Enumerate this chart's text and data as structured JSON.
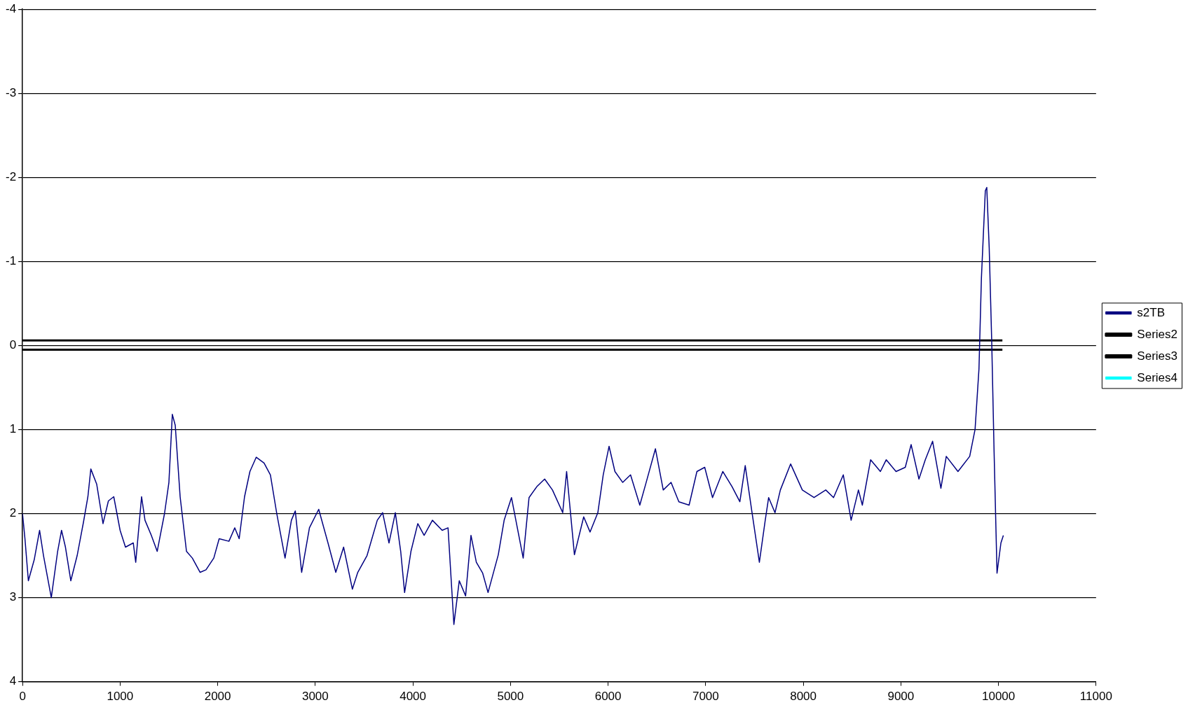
{
  "chart_data": {
    "type": "line",
    "xlim": [
      0,
      11000
    ],
    "xticks": [
      0,
      1000,
      2000,
      3000,
      4000,
      5000,
      6000,
      7000,
      8000,
      9000,
      10000,
      11000
    ],
    "ylim": [
      4,
      -4
    ],
    "yticks": [
      -4,
      -3,
      -2,
      -1,
      0,
      1,
      2,
      3,
      4
    ],
    "grid": "y",
    "legend": "right",
    "marker": "none",
    "series": [
      {
        "name": "s2TB",
        "color": "#000080",
        "x": [
          0,
          25,
          60,
          120,
          175,
          215,
          255,
          295,
          360,
          400,
          440,
          495,
          560,
          625,
          670,
          700,
          760,
          825,
          880,
          935,
          1000,
          1055,
          1135,
          1160,
          1220,
          1255,
          1320,
          1380,
          1455,
          1500,
          1535,
          1565,
          1615,
          1680,
          1740,
          1820,
          1880,
          1960,
          2015,
          2115,
          2175,
          2220,
          2275,
          2330,
          2395,
          2475,
          2540,
          2605,
          2690,
          2755,
          2795,
          2860,
          2940,
          3035,
          3130,
          3210,
          3290,
          3380,
          3435,
          3530,
          3635,
          3690,
          3755,
          3820,
          3875,
          3915,
          3980,
          4050,
          4115,
          4200,
          4300,
          4360,
          4420,
          4475,
          4540,
          4595,
          4650,
          4715,
          4770,
          4875,
          4935,
          5010,
          5070,
          5130,
          5190,
          5270,
          5350,
          5430,
          5535,
          5575,
          5655,
          5750,
          5815,
          5895,
          5950,
          6010,
          6070,
          6150,
          6230,
          6325,
          6390,
          6485,
          6565,
          6645,
          6725,
          6830,
          6910,
          6990,
          7070,
          7175,
          7270,
          7350,
          7405,
          7475,
          7550,
          7610,
          7645,
          7710,
          7765,
          7870,
          7990,
          8110,
          8230,
          8310,
          8410,
          8490,
          8565,
          8605,
          8690,
          8790,
          8850,
          8950,
          9045,
          9105,
          9185,
          9250,
          9325,
          9410,
          9465,
          9585,
          9705,
          9760,
          9800,
          9825,
          9865,
          9880,
          9905,
          9930,
          9955,
          9985,
          10025,
          10050
        ],
        "values": [
          2.0,
          2.3,
          2.8,
          2.55,
          2.2,
          2.5,
          2.75,
          3.0,
          2.45,
          2.2,
          2.4,
          2.8,
          2.5,
          2.1,
          1.8,
          1.47,
          1.65,
          2.12,
          1.85,
          1.8,
          2.2,
          2.4,
          2.35,
          2.58,
          1.8,
          2.08,
          2.26,
          2.45,
          2.0,
          1.63,
          0.82,
          0.95,
          1.8,
          2.45,
          2.53,
          2.7,
          2.67,
          2.53,
          2.3,
          2.33,
          2.17,
          2.3,
          1.8,
          1.5,
          1.33,
          1.4,
          1.54,
          2.0,
          2.53,
          2.08,
          1.97,
          2.7,
          2.17,
          1.95,
          2.35,
          2.7,
          2.4,
          2.9,
          2.7,
          2.5,
          2.08,
          1.99,
          2.35,
          1.99,
          2.45,
          2.94,
          2.45,
          2.12,
          2.26,
          2.08,
          2.2,
          2.17,
          3.32,
          2.8,
          2.98,
          2.26,
          2.58,
          2.71,
          2.94,
          2.49,
          2.08,
          1.81,
          2.17,
          2.53,
          1.81,
          1.68,
          1.59,
          1.72,
          1.99,
          1.5,
          2.49,
          2.04,
          2.22,
          1.99,
          1.54,
          1.2,
          1.5,
          1.63,
          1.54,
          1.9,
          1.63,
          1.23,
          1.72,
          1.63,
          1.86,
          1.9,
          1.5,
          1.45,
          1.81,
          1.5,
          1.68,
          1.86,
          1.43,
          1.99,
          2.58,
          2.08,
          1.81,
          1.99,
          1.72,
          1.41,
          1.72,
          1.81,
          1.72,
          1.81,
          1.54,
          2.08,
          1.72,
          1.9,
          1.36,
          1.5,
          1.36,
          1.5,
          1.45,
          1.18,
          1.59,
          1.36,
          1.14,
          1.7,
          1.32,
          1.5,
          1.32,
          1.0,
          0.28,
          -0.8,
          -1.84,
          -1.88,
          -1.16,
          -0.08,
          1.27,
          2.71,
          2.35,
          2.26
        ]
      },
      {
        "name": "Series2",
        "color": "#000000",
        "x": [
          0,
          10040
        ],
        "values": [
          -0.06,
          -0.06
        ]
      },
      {
        "name": "Series3",
        "color": "#000000",
        "x": [
          0,
          10040
        ],
        "values": [
          0.05,
          0.05
        ]
      },
      {
        "name": "Series4",
        "color": "#00ffff"
      }
    ]
  }
}
